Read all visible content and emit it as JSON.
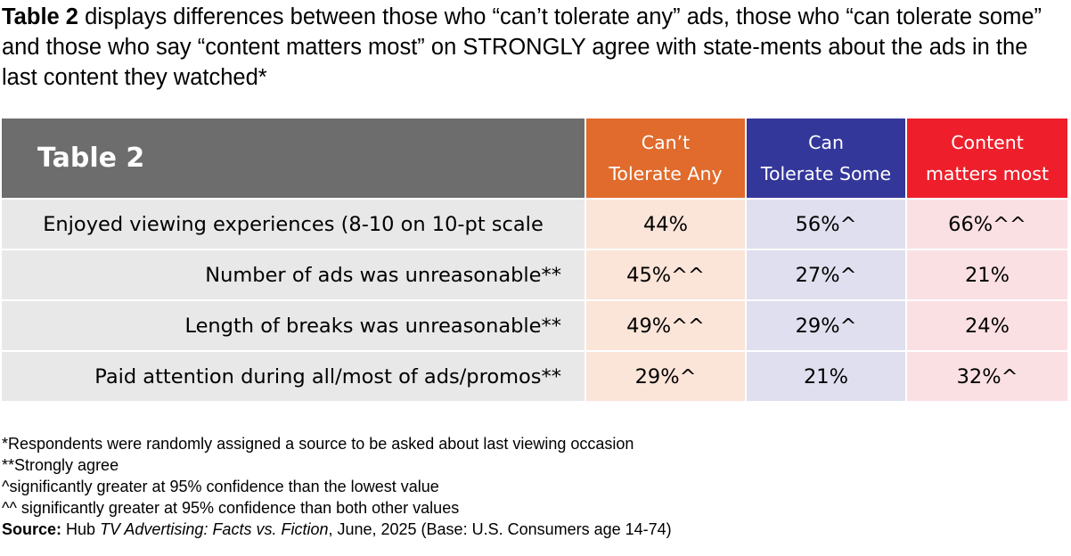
{
  "intro": {
    "lead": "Table 2",
    "text": " displays differences between those who “can’t tolerate any” ads, those who “can tolerate some” and those who say “content matters most” on STRONGLY agree with state-ments about the ads in the last content they watched*"
  },
  "table": {
    "title": "Table 2",
    "columns": [
      {
        "line1": "Can’t",
        "line2": "Tolerate Any",
        "header_color": "#e06b2c",
        "cell_color": "#fbe4d8"
      },
      {
        "line1": "Can",
        "line2": "Tolerate Some",
        "header_color": "#34379a",
        "cell_color": "#dfdfef"
      },
      {
        "line1": "Content",
        "line2": "matters most",
        "header_color": "#ee1f2b",
        "cell_color": "#fbe0e3"
      }
    ],
    "rows": [
      {
        "label": "Enjoyed viewing experiences (8-10 on 10-pt scale",
        "values": [
          "44%",
          "56%^",
          "66%^^"
        ]
      },
      {
        "label": "Number of ads was unreasonable**",
        "values": [
          "45%^^",
          "27%^",
          "21%"
        ]
      },
      {
        "label": "Length of breaks was unreasonable**",
        "values": [
          "49%^^",
          "29%^",
          "24%"
        ]
      },
      {
        "label": "Paid attention during all/most of ads/promos**",
        "values": [
          "29%^",
          "21%",
          "32%^"
        ]
      }
    ]
  },
  "notes": {
    "line1": "*Respondents were randomly assigned a source to be asked about last viewing occasion",
    "line2": "**Strongly agree",
    "line3": "^significantly greater at 95% confidence than the lowest value",
    "line4": "^^ significantly greater at 95% confidence than both other values",
    "source_label": "Source:",
    "source_pre": " Hub ",
    "source_title": "TV Advertising: Facts vs. Fiction",
    "source_post": ", June, 2025 (Base: U.S. Consumers age 14-74)"
  }
}
